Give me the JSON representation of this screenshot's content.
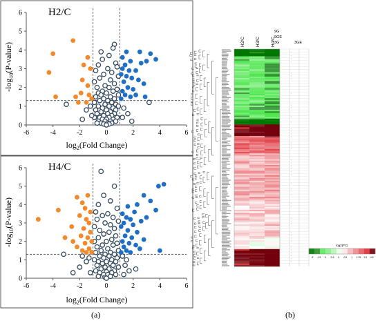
{
  "panel_labels": {
    "a": "(a)",
    "b": "(b)"
  },
  "colors": {
    "down": "#f28a2b",
    "up": "#1f6fc4",
    "ns_edge": "#34495e",
    "threshold": "#444444"
  },
  "chart_data": [
    {
      "type": "scatter",
      "title": "H2/C",
      "xlabel": "log2(Fold Change)",
      "ylabel": "-log10(P-value)",
      "xlim": [
        -6,
        6
      ],
      "ylim": [
        0,
        6
      ],
      "xticks": [
        "-6",
        "-4",
        "-2",
        "0",
        "2",
        "4",
        "6"
      ],
      "yticks": [
        "0",
        "1",
        "2",
        "3",
        "4",
        "5",
        "6"
      ],
      "thresholds": {
        "x": [
          -1,
          1
        ],
        "y": 1.3
      },
      "series": [
        {
          "group": "down",
          "points": [
            [
              -2.5,
              4.5
            ],
            [
              -4,
              3.8
            ],
            [
              -4.3,
              2.8
            ],
            [
              -1.4,
              3.6
            ],
            [
              -1.7,
              3.2
            ],
            [
              -1.2,
              3.0
            ],
            [
              -1.8,
              2.4
            ],
            [
              -1.4,
              2.1
            ],
            [
              -1.9,
              1.7
            ],
            [
              -1.3,
              1.6
            ],
            [
              -2.3,
              1.5
            ],
            [
              -3.8,
              1.5
            ],
            [
              -1.1,
              1.4
            ],
            [
              -2.1,
              1.2
            ],
            [
              -1.5,
              1.2
            ]
          ]
        },
        {
          "group": "up",
          "points": [
            [
              1.2,
              3.6
            ],
            [
              1.5,
              3.9
            ],
            [
              2.5,
              3.9
            ],
            [
              3.3,
              3.8
            ],
            [
              3.7,
              3.5
            ],
            [
              1.8,
              3.4
            ],
            [
              2.6,
              3.3
            ],
            [
              1.4,
              3.2
            ],
            [
              1.2,
              3.0
            ],
            [
              1.7,
              2.9
            ],
            [
              2.2,
              2.9
            ],
            [
              3.0,
              3.4
            ],
            [
              1.1,
              2.7
            ],
            [
              1.5,
              2.6
            ],
            [
              1.9,
              2.5
            ],
            [
              2.4,
              2.4
            ],
            [
              2.8,
              2.2
            ],
            [
              1.3,
              2.3
            ],
            [
              1.6,
              2.0
            ],
            [
              2.0,
              1.9
            ],
            [
              1.2,
              1.8
            ],
            [
              1.4,
              1.6
            ],
            [
              1.8,
              1.5
            ],
            [
              2.9,
              1.5
            ],
            [
              1.1,
              1.4
            ],
            [
              2.2,
              1.6
            ]
          ]
        },
        {
          "group": "ns",
          "points": [
            [
              0.6,
              4.3
            ],
            [
              0.5,
              4.1
            ],
            [
              -0.4,
              3.9
            ],
            [
              0.2,
              3.7
            ],
            [
              -0.3,
              3.5
            ],
            [
              0.7,
              3.3
            ],
            [
              -0.6,
              3.2
            ],
            [
              0.8,
              3.1
            ],
            [
              0.1,
              3.0
            ],
            [
              -0.8,
              2.9
            ],
            [
              0.4,
              2.8
            ],
            [
              -0.2,
              2.7
            ],
            [
              0.9,
              2.6
            ],
            [
              -0.5,
              2.5
            ],
            [
              0.3,
              2.4
            ],
            [
              -0.9,
              2.3
            ],
            [
              0.6,
              2.2
            ],
            [
              -0.1,
              2.1
            ],
            [
              0.2,
              2.0
            ],
            [
              -0.7,
              2.0
            ],
            [
              0.8,
              1.9
            ],
            [
              -0.3,
              1.8
            ],
            [
              0.5,
              1.8
            ],
            [
              -0.6,
              1.7
            ],
            [
              0.0,
              1.7
            ],
            [
              0.9,
              1.6
            ],
            [
              -0.4,
              1.6
            ],
            [
              0.3,
              1.5
            ],
            [
              -0.8,
              1.5
            ],
            [
              0.6,
              1.4
            ],
            [
              -0.2,
              1.4
            ],
            [
              0.1,
              1.3
            ],
            [
              -0.5,
              1.3
            ],
            [
              -0.9,
              1.2
            ],
            [
              0.4,
              1.2
            ],
            [
              0.7,
              1.1
            ],
            [
              -0.1,
              1.1
            ],
            [
              -0.6,
              1.0
            ],
            [
              0.2,
              1.0
            ],
            [
              0.9,
              1.0
            ],
            [
              -0.3,
              0.9
            ],
            [
              0.5,
              0.9
            ],
            [
              -0.8,
              0.8
            ],
            [
              0.0,
              0.8
            ],
            [
              0.7,
              0.8
            ],
            [
              -0.4,
              0.7
            ],
            [
              0.3,
              0.7
            ],
            [
              -0.7,
              0.6
            ],
            [
              0.1,
              0.6
            ],
            [
              0.6,
              0.6
            ],
            [
              -0.2,
              0.5
            ],
            [
              0.4,
              0.5
            ],
            [
              -0.5,
              0.4
            ],
            [
              0.2,
              0.4
            ],
            [
              0.8,
              0.4
            ],
            [
              -0.9,
              0.4
            ],
            [
              0.0,
              0.3
            ],
            [
              -0.3,
              0.3
            ],
            [
              0.5,
              0.3
            ],
            [
              -0.6,
              0.2
            ],
            [
              0.3,
              0.2
            ],
            [
              -0.1,
              0.2
            ],
            [
              0.7,
              0.2
            ],
            [
              0.1,
              0.1
            ],
            [
              -0.4,
              0.1
            ],
            [
              0.4,
              0.1
            ],
            [
              -0.2,
              0.05
            ],
            [
              0.2,
              0.05
            ],
            [
              0.0,
              0.0
            ],
            [
              -0.7,
              0.1
            ],
            [
              -1.2,
              1.0
            ],
            [
              -1.5,
              0.8
            ],
            [
              1.3,
              0.9
            ],
            [
              1.6,
              0.6
            ],
            [
              -3.0,
              1.1
            ],
            [
              3.2,
              1.2
            ],
            [
              -1.1,
              0.5
            ],
            [
              1.2,
              0.4
            ],
            [
              -1.8,
              0.3
            ],
            [
              1.9,
              0.2
            ]
          ]
        }
      ]
    },
    {
      "type": "scatter",
      "title": "H4/C",
      "xlabel": "log2(Fold Change)",
      "ylabel": "-log10(P-value)",
      "xlim": [
        -6,
        6
      ],
      "ylim": [
        0,
        6
      ],
      "xticks": [
        "-6",
        "-4",
        "-2",
        "0",
        "2",
        "4",
        "6"
      ],
      "yticks": [
        "0",
        "1",
        "2",
        "3",
        "4",
        "5",
        "6"
      ],
      "thresholds": {
        "x": [
          -1,
          1
        ],
        "y": 1.3
      },
      "series": [
        {
          "group": "down",
          "points": [
            [
              -5.1,
              3.2
            ],
            [
              -3.6,
              3.7
            ],
            [
              -2.2,
              4.4
            ],
            [
              -1.8,
              4.1
            ],
            [
              -1.4,
              4.5
            ],
            [
              -1.6,
              3.8
            ],
            [
              -1.2,
              3.6
            ],
            [
              -2.0,
              3.4
            ],
            [
              -1.5,
              3.2
            ],
            [
              -1.3,
              3.0
            ],
            [
              -2.6,
              2.8
            ],
            [
              -1.7,
              2.7
            ],
            [
              -1.2,
              2.5
            ],
            [
              -1.9,
              2.3
            ],
            [
              -1.4,
              2.2
            ],
            [
              -3.1,
              2.2
            ],
            [
              -1.1,
              2.0
            ],
            [
              -1.6,
              1.9
            ],
            [
              -2.2,
              1.7
            ],
            [
              -1.3,
              1.6
            ],
            [
              -1.8,
              1.5
            ],
            [
              -1.1,
              1.4
            ],
            [
              -2.5,
              2.0
            ],
            [
              -1.5,
              1.4
            ]
          ]
        },
        {
          "group": "up",
          "points": [
            [
              4.3,
              5.1
            ],
            [
              3.9,
              5.0
            ],
            [
              2.8,
              4.5
            ],
            [
              3.3,
              4.2
            ],
            [
              2.3,
              4.0
            ],
            [
              1.6,
              3.9
            ],
            [
              2.1,
              3.6
            ],
            [
              3.7,
              3.7
            ],
            [
              1.2,
              3.5
            ],
            [
              1.5,
              3.3
            ],
            [
              1.8,
              3.2
            ],
            [
              2.6,
              3.1
            ],
            [
              3.0,
              3.3
            ],
            [
              1.3,
              3.0
            ],
            [
              2.0,
              2.9
            ],
            [
              1.1,
              2.8
            ],
            [
              1.6,
              2.6
            ],
            [
              2.3,
              2.5
            ],
            [
              1.4,
              2.3
            ],
            [
              1.9,
              2.2
            ],
            [
              2.8,
              2.1
            ],
            [
              1.2,
              2.0
            ],
            [
              1.7,
              1.9
            ],
            [
              2.2,
              1.8
            ],
            [
              1.3,
              1.7
            ],
            [
              1.5,
              1.5
            ],
            [
              4.0,
              1.5
            ],
            [
              1.1,
              1.4
            ],
            [
              2.5,
              1.6
            ],
            [
              1.8,
              1.4
            ]
          ]
        },
        {
          "group": "ns",
          "points": [
            [
              -0.4,
              5.8
            ],
            [
              0.6,
              5.0
            ],
            [
              -0.2,
              4.5
            ],
            [
              0.3,
              4.2
            ],
            [
              -0.6,
              4.0
            ],
            [
              0.8,
              3.8
            ],
            [
              -0.8,
              3.6
            ],
            [
              0.1,
              3.5
            ],
            [
              -0.3,
              3.4
            ],
            [
              0.5,
              3.3
            ],
            [
              -0.7,
              3.2
            ],
            [
              0.9,
              3.1
            ],
            [
              -0.1,
              3.0
            ],
            [
              0.3,
              2.9
            ],
            [
              -0.9,
              2.8
            ],
            [
              0.6,
              2.7
            ],
            [
              -0.5,
              2.6
            ],
            [
              0.2,
              2.5
            ],
            [
              -0.2,
              2.4
            ],
            [
              0.7,
              2.3
            ],
            [
              -0.6,
              2.2
            ],
            [
              0.4,
              2.1
            ],
            [
              -0.9,
              2.0
            ],
            [
              0.0,
              2.0
            ],
            [
              0.8,
              1.9
            ],
            [
              -0.3,
              1.8
            ],
            [
              0.5,
              1.8
            ],
            [
              -0.7,
              1.7
            ],
            [
              0.1,
              1.6
            ],
            [
              -0.4,
              1.5
            ],
            [
              0.9,
              1.5
            ],
            [
              0.3,
              1.4
            ],
            [
              -0.8,
              1.4
            ],
            [
              -0.1,
              1.3
            ],
            [
              0.6,
              1.3
            ],
            [
              -0.5,
              1.2
            ],
            [
              0.2,
              1.2
            ],
            [
              0.8,
              1.1
            ],
            [
              -0.2,
              1.1
            ],
            [
              -0.9,
              1.0
            ],
            [
              0.4,
              1.0
            ],
            [
              0.0,
              0.9
            ],
            [
              -0.6,
              0.9
            ],
            [
              0.7,
              0.9
            ],
            [
              -0.3,
              0.8
            ],
            [
              0.3,
              0.8
            ],
            [
              -0.7,
              0.7
            ],
            [
              0.5,
              0.7
            ],
            [
              -0.1,
              0.6
            ],
            [
              0.9,
              0.6
            ],
            [
              -0.4,
              0.5
            ],
            [
              0.2,
              0.5
            ],
            [
              -0.8,
              0.4
            ],
            [
              0.6,
              0.4
            ],
            [
              0.0,
              0.35
            ],
            [
              -0.5,
              0.3
            ],
            [
              0.4,
              0.3
            ],
            [
              -0.2,
              0.2
            ],
            [
              0.1,
              0.2
            ],
            [
              0.7,
              0.2
            ],
            [
              -0.6,
              0.1
            ],
            [
              0.3,
              0.1
            ],
            [
              -0.1,
              0.05
            ],
            [
              0.0,
              0.0
            ],
            [
              -3.2,
              1.3
            ],
            [
              -1.5,
              0.9
            ],
            [
              -2.0,
              0.6
            ],
            [
              1.4,
              0.7
            ],
            [
              1.7,
              0.4
            ],
            [
              -1.2,
              0.3
            ],
            [
              1.3,
              0.2
            ],
            [
              -2.5,
              0.3
            ],
            [
              2.2,
              0.5
            ],
            [
              -1.3,
              1.1
            ],
            [
              1.5,
              1.0
            ],
            [
              -1.8,
              1.2
            ],
            [
              1.2,
              1.2
            ]
          ]
        }
      ]
    },
    {
      "type": "heatmap",
      "columns": [
        "H2/C",
        "H3/C",
        "H4/C"
      ],
      "side_headers": [
        "9G",
        "9GE",
        "3G",
        "3GE"
      ],
      "colorbar": {
        "title": "log2(FC)",
        "ticks": [
          "-3",
          "-1.5",
          "-1",
          "-0.5",
          "0",
          "0.5",
          "1",
          "1.25",
          "1.5",
          "4.5"
        ]
      }
    }
  ]
}
